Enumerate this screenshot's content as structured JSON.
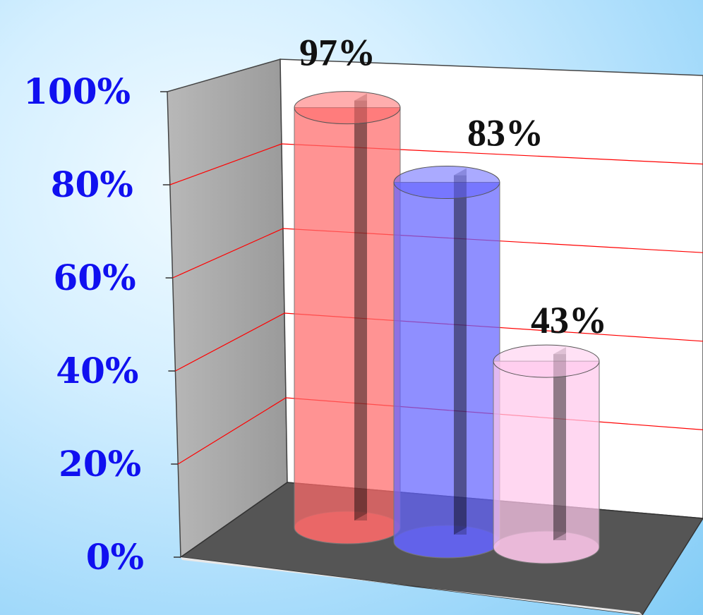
{
  "chart_data": {
    "type": "bar",
    "style": "3d-cylinder",
    "categories": [
      "",
      "",
      ""
    ],
    "values": [
      97,
      83,
      43
    ],
    "value_labels": [
      "97%",
      "83%",
      "43%"
    ],
    "bar_colors": [
      "#ff6a6a",
      "#6464ff",
      "#ffc8ec"
    ],
    "ylim": [
      0,
      100
    ],
    "yticks": [
      "0%",
      "20%",
      "40%",
      "60%",
      "80%",
      "100%"
    ],
    "ytick_color": "#1010f0",
    "grid": true,
    "grid_color": "#ff0000",
    "legend": "none"
  }
}
